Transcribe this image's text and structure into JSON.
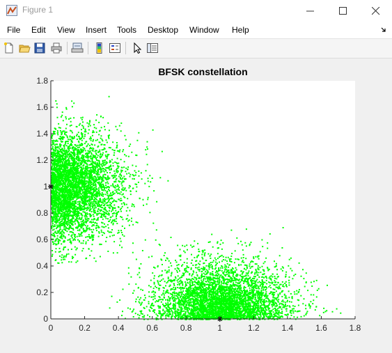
{
  "window": {
    "title": "Figure 1",
    "controls": [
      "minimize",
      "maximize",
      "close"
    ]
  },
  "menu": {
    "items": [
      "File",
      "Edit",
      "View",
      "Insert",
      "Tools",
      "Desktop",
      "Window",
      "Help"
    ]
  },
  "toolbar": {
    "buttons": [
      {
        "name": "new-figure-icon"
      },
      {
        "name": "open-file-icon"
      },
      {
        "name": "save-figure-icon"
      },
      {
        "name": "print-figure-icon"
      },
      {
        "name": "link-plot-icon"
      },
      {
        "name": "insert-colorbar-icon"
      },
      {
        "name": "insert-legend-icon"
      },
      {
        "name": "edit-plot-arrow-icon"
      },
      {
        "name": "property-inspector-icon"
      }
    ]
  },
  "colors": {
    "points": "#00ff00",
    "markers": "#000000",
    "axes_bg": "#ffffff",
    "figure_bg": "#f0f0f0"
  },
  "chart_data": {
    "type": "scatter",
    "title": "BFSK constellation",
    "xlabel": "",
    "ylabel": "",
    "xlim": [
      0,
      1.8
    ],
    "ylim": [
      0,
      1.8
    ],
    "xticks": [
      "0",
      "0.2",
      "0.4",
      "0.6",
      "0.8",
      "1",
      "1.2",
      "1.4",
      "1.6",
      "1.8"
    ],
    "yticks": [
      "0",
      "0.2",
      "0.4",
      "0.6",
      "0.8",
      "1",
      "1.2",
      "1.4",
      "1.6",
      "1.8"
    ],
    "grid": false,
    "series": [
      {
        "marker": "dot",
        "color": "#00ff00",
        "description": "received symbols with noise",
        "clusters": [
          {
            "center": [
              0,
              1
            ],
            "x_extent": [
              0,
              0.72
            ],
            "y_extent": [
              0.42,
              1.7
            ],
            "spread": 0.2
          },
          {
            "center": [
              1,
              0
            ],
            "x_extent": [
              0.32,
              1.72
            ],
            "y_extent": [
              0,
              0.72
            ],
            "spread": 0.2
          }
        ]
      },
      {
        "marker": "asterisk",
        "color": "#000000",
        "description": "ideal constellation points",
        "points": [
          [
            0,
            1
          ],
          [
            1,
            0
          ]
        ]
      }
    ]
  }
}
